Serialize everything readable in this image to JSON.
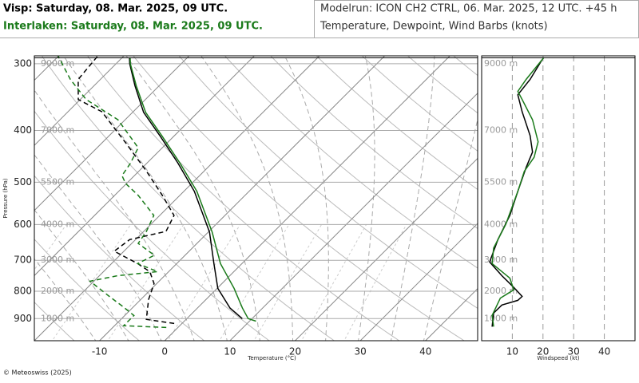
{
  "header": {
    "left_title": "Visp: Saturday, 08. Mar. 2025, 09 UTC.",
    "left_subtitle": "Interlaken: Saturday, 08. Mar. 2025, 09 UTC.",
    "right_title": "Modelrun: ICON CH2 CTRL, 06. Mar. 2025, 12 UTC. +45 h",
    "right_subtitle": "Temperature, Dewpoint, Wind Barbs (knots)"
  },
  "footer": "© Meteoswiss (2025)",
  "chart_data": [
    {
      "type": "skewt",
      "ylabel": "Pressure (hPa)",
      "xlabel": "Temperature (°C)",
      "log_y": true,
      "ylim": [
        990,
        290
      ],
      "xlim": [
        -20,
        48
      ],
      "yticks": [
        300,
        400,
        500,
        600,
        700,
        800,
        900
      ],
      "xticks": [
        -10,
        0,
        10,
        20,
        30,
        40
      ],
      "altitude_ticks": [
        {
          "value": 300,
          "label": "9000 m"
        },
        {
          "value": 400,
          "label": "7000 m"
        },
        {
          "value": 500,
          "label": "5500 m"
        },
        {
          "value": 600,
          "label": "4000 m"
        },
        {
          "value": 700,
          "label": "3000 m"
        },
        {
          "value": 800,
          "label": "2000 m"
        },
        {
          "value": 900,
          "label": "1000 m"
        }
      ],
      "series": [
        {
          "color": "#000000",
          "style": "solid",
          "pressure": [
            900,
            860,
            790,
            710,
            620,
            520,
            460,
            410,
            370,
            330,
            300,
            292
          ],
          "values": [
            8.5,
            5.0,
            0.1,
            -4.3,
            -9.8,
            -18.4,
            -25.3,
            -32.1,
            -38.3,
            -43.7,
            -47.9,
            -48.9
          ]
        },
        {
          "color": "#1a7a1a",
          "style": "solid",
          "pressure": [
            910,
            900,
            860,
            790,
            710,
            620,
            520,
            460,
            410,
            370,
            330,
            300,
            292
          ],
          "values": [
            11.0,
            9.4,
            6.9,
            2.6,
            -3.3,
            -9.4,
            -18.0,
            -25.0,
            -31.8,
            -38.0,
            -43.5,
            -47.8,
            -48.8
          ]
        },
        {
          "color": "#000000",
          "style": "dashed",
          "pressure": [
            919,
            903,
            829,
            774,
            735,
            710,
            673,
            640,
            618,
            577,
            529,
            477,
            423,
            369,
            350,
            321,
            290
          ],
          "values": [
            -1.2,
            -6.1,
            -8.8,
            -10.4,
            -12.9,
            -16.0,
            -21.5,
            -20.9,
            -16.6,
            -17.8,
            -22.7,
            -28.8,
            -36.2,
            -44.8,
            -50.3,
            -53.4,
            -54.0
          ]
        },
        {
          "color": "#1a7a1a",
          "style": "dashed",
          "pressure": [
            935,
            928,
            888,
            852,
            820,
            766,
            748,
            735,
            710,
            685,
            651,
            618,
            577,
            529,
            503,
            486,
            461,
            431,
            382,
            350,
            321,
            290
          ],
          "values": [
            -1.8,
            -8.6,
            -8.6,
            -11.9,
            -15.1,
            -20.6,
            -17.2,
            -11.7,
            -16.0,
            -14.7,
            -19.0,
            -19.6,
            -20.9,
            -26.4,
            -30.1,
            -31.9,
            -32.5,
            -33.7,
            -41.1,
            -49.1,
            -54.6,
            -60.1
          ]
        }
      ]
    },
    {
      "type": "profile",
      "xlabel": "Windspeed (kt)",
      "log_y": true,
      "ylim": [
        990,
        290
      ],
      "xlim": [
        0,
        50
      ],
      "xticks": [
        10,
        20,
        30,
        40
      ],
      "altitude_ticks": [
        {
          "value": 300,
          "label": "9000 m"
        },
        {
          "value": 400,
          "label": "7000 m"
        },
        {
          "value": 500,
          "label": "5500 m"
        },
        {
          "value": 600,
          "label": "4000 m"
        },
        {
          "value": 700,
          "label": "3000 m"
        },
        {
          "value": 800,
          "label": "2000 m"
        },
        {
          "value": 900,
          "label": "1000 m"
        }
      ],
      "series": [
        {
          "color": "#000000",
          "pressure": [
            932,
            879,
            849,
            832,
            818,
            787,
            748,
            705,
            640,
            577,
            520,
            469,
            439,
            409,
            369,
            343,
            321,
            295
          ],
          "values": [
            3.4,
            3.9,
            6.6,
            11.8,
            13.2,
            10.5,
            6.6,
            2.6,
            5.3,
            9.2,
            11.8,
            14.5,
            16.6,
            15.8,
            13.2,
            11.8,
            15.8,
            19.7
          ]
        },
        {
          "color": "#1a7a1a",
          "pressure": [
            932,
            888,
            824,
            795,
            756,
            710,
            664,
            599,
            520,
            477,
            449,
            420,
            382,
            350,
            338,
            321,
            292
          ],
          "values": [
            3.9,
            3.4,
            6.1,
            10.5,
            9.2,
            3.4,
            3.9,
            7.9,
            11.8,
            13.9,
            17.1,
            18.4,
            16.6,
            13.2,
            11.8,
            14.5,
            20.3
          ]
        }
      ]
    }
  ]
}
